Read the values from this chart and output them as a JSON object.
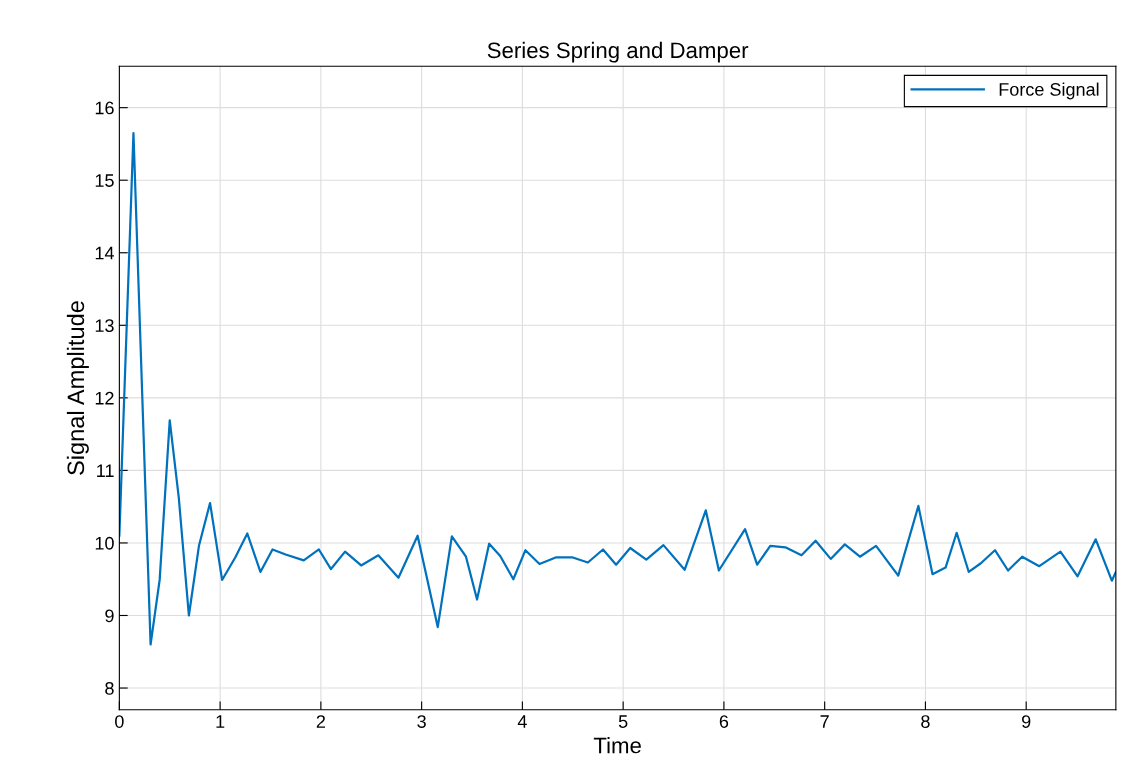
{
  "chart_data": {
    "type": "line",
    "title": "Series Spring and Damper",
    "xlabel": "Time",
    "ylabel": "Signal Amplitude",
    "series": [
      {
        "name": "Force Signal",
        "color": "#0072bd",
        "x": [
          0,
          0.14,
          0.31,
          0.4,
          0.5,
          0.59,
          0.69,
          0.79,
          0.9,
          1.02,
          1.15,
          1.27,
          1.4,
          1.52,
          1.65,
          1.83,
          1.98,
          2.1,
          2.24,
          2.4,
          2.57,
          2.77,
          2.96,
          3.16,
          3.3,
          3.44,
          3.55,
          3.67,
          3.78,
          3.91,
          4.03,
          4.17,
          4.33,
          4.5,
          4.65,
          4.8,
          4.93,
          5.07,
          5.23,
          5.4,
          5.61,
          5.82,
          5.95,
          6.21,
          6.33,
          6.46,
          6.61,
          6.77,
          6.91,
          7.06,
          7.2,
          7.35,
          7.51,
          7.73,
          7.93,
          8.07,
          8.2,
          8.31,
          8.43,
          8.55,
          8.69,
          8.82,
          8.96,
          9.13,
          9.34,
          9.51,
          9.69,
          9.85,
          9.89
        ],
        "values": [
          10.1,
          15.65,
          8.6,
          9.49,
          11.69,
          10.62,
          9.0,
          9.96,
          10.55,
          9.49,
          9.8,
          10.13,
          9.6,
          9.91,
          9.84,
          9.76,
          9.91,
          9.64,
          9.88,
          9.69,
          9.83,
          9.52,
          10.1,
          8.84,
          10.09,
          9.81,
          9.22,
          9.99,
          9.82,
          9.5,
          9.9,
          9.71,
          9.8,
          9.8,
          9.73,
          9.91,
          9.7,
          9.93,
          9.77,
          9.97,
          9.63,
          10.45,
          9.62,
          10.19,
          9.7,
          9.96,
          9.94,
          9.83,
          10.03,
          9.78,
          9.98,
          9.81,
          9.96,
          9.55,
          10.51,
          9.57,
          9.66,
          10.14,
          9.6,
          9.72,
          9.9,
          9.62,
          9.81,
          9.68,
          9.88,
          9.54,
          10.05,
          9.48,
          9.6
        ]
      }
    ],
    "xlim": [
      0,
      9.89
    ],
    "xticks": [
      0,
      1,
      2,
      3,
      4,
      5,
      6,
      7,
      8,
      9
    ],
    "ylim": [
      7.7,
      16.57
    ],
    "yticks": [
      8,
      9,
      10,
      11,
      12,
      13,
      14,
      15,
      16
    ],
    "grid": true,
    "legend": "top right",
    "marker": "none",
    "line_style": "solid"
  }
}
